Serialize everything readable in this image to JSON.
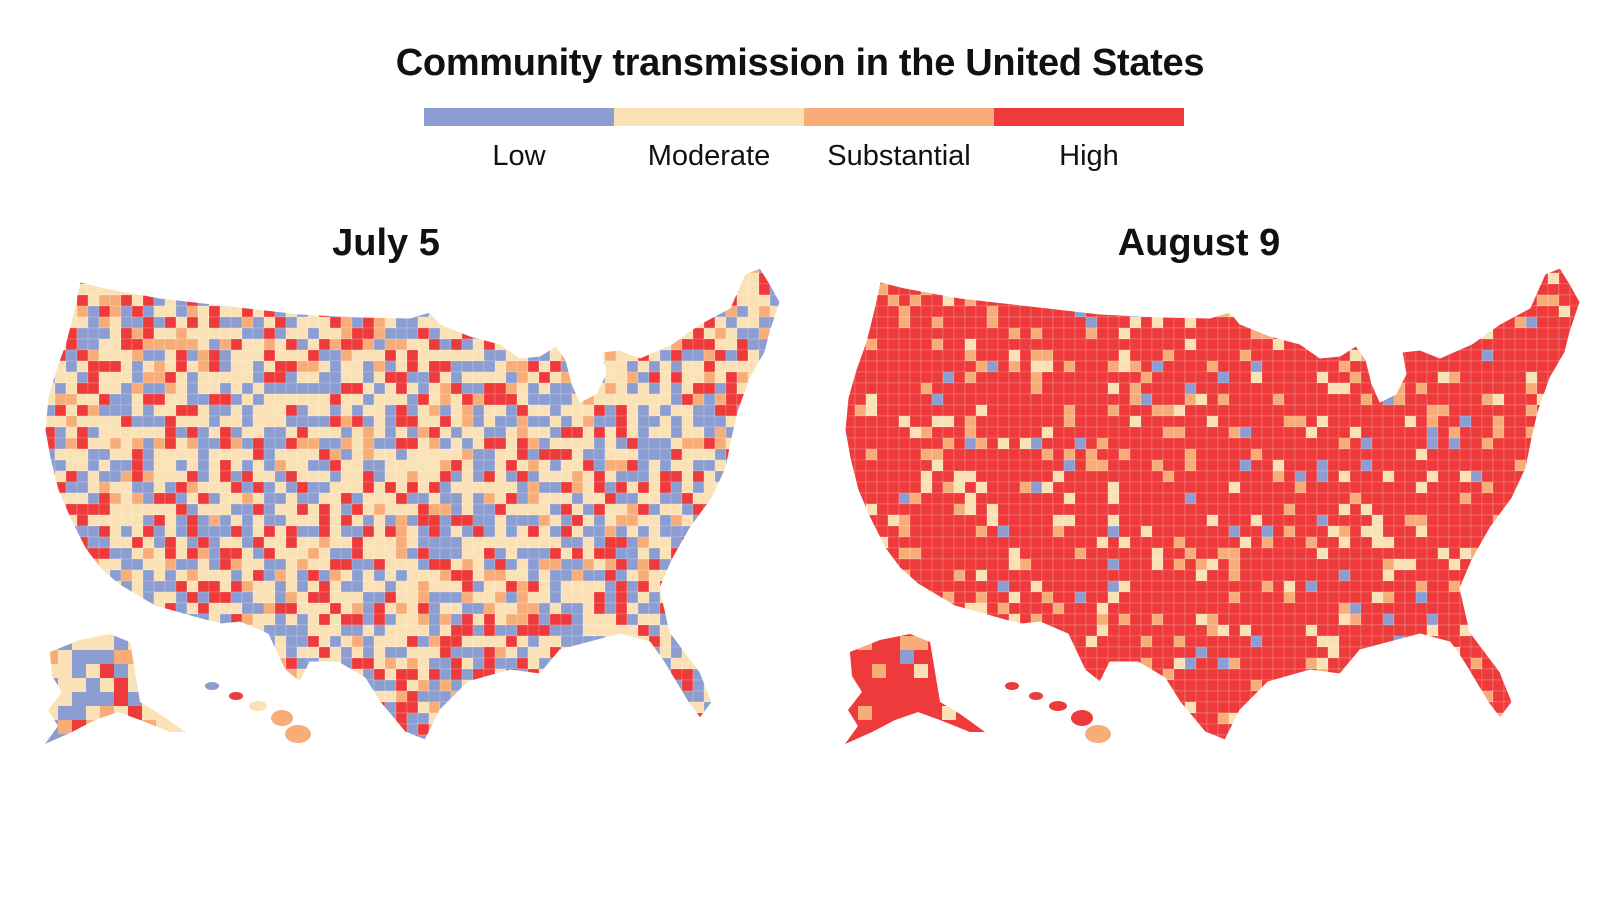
{
  "title": "Community transmission in the United States",
  "legend": [
    {
      "label": "Low",
      "color": "#8c9ed1"
    },
    {
      "label": "Moderate",
      "color": "#fbe2b6"
    },
    {
      "label": "Substantial",
      "color": "#f8ad78"
    },
    {
      "label": "High",
      "color": "#ee3a3a"
    }
  ],
  "maps": [
    {
      "title": "July 5",
      "base_level": "Moderate",
      "mix": {
        "Low": 0.3,
        "Moderate": 0.4,
        "Substantial": 0.1,
        "High": 0.2
      }
    },
    {
      "title": "August 9",
      "base_level": "High",
      "mix": {
        "Low": 0.03,
        "Moderate": 0.07,
        "Substantial": 0.1,
        "High": 0.8
      }
    }
  ]
}
